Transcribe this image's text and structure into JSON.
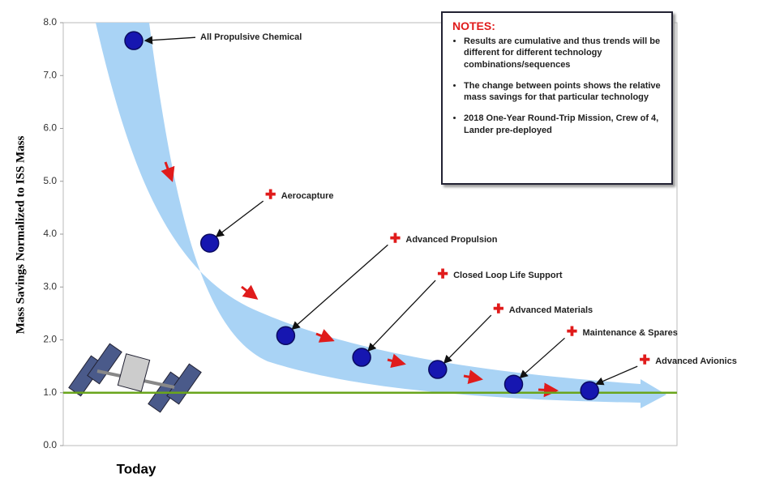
{
  "chart_data": {
    "type": "scatter",
    "y_label": "Mass Savings Normalized to ISS Mass",
    "x_label": "Today",
    "categories": [
      "All Propulsive Chemical",
      "Aerocapture",
      "Advanced Propulsion",
      "Closed Loop Life Support",
      "Advanced Materials",
      "Maintenance & Spares",
      "Advanced Avionics"
    ],
    "values": [
      7.66,
      3.83,
      2.08,
      1.67,
      1.44,
      1.16,
      1.04
    ],
    "color": "#1616b0",
    "ylim": [
      0,
      8
    ],
    "yticks": [
      {
        "value": 0,
        "label": "0.0"
      },
      {
        "value": 1,
        "label": "1.0"
      },
      {
        "value": 2,
        "label": "2.0"
      },
      {
        "value": 3,
        "label": "3.0"
      },
      {
        "value": 4,
        "label": "4.0"
      },
      {
        "value": 5,
        "label": "5.0"
      },
      {
        "value": 6,
        "label": "6.0"
      },
      {
        "value": 7,
        "label": "7.0"
      },
      {
        "value": 8,
        "label": "8.0"
      }
    ],
    "baseline": 1,
    "baseline_color": "#6aa51c",
    "notes": {
      "title": "NOTES:",
      "items": [
        "Results are cumulative and thus trends will be different for different technology combinations/sequences",
        "The change between points shows the relative mass savings for that particular technology",
        "2018 One-Year Round-Trip Mission, Crew of 4, Lander pre-deployed"
      ]
    }
  }
}
